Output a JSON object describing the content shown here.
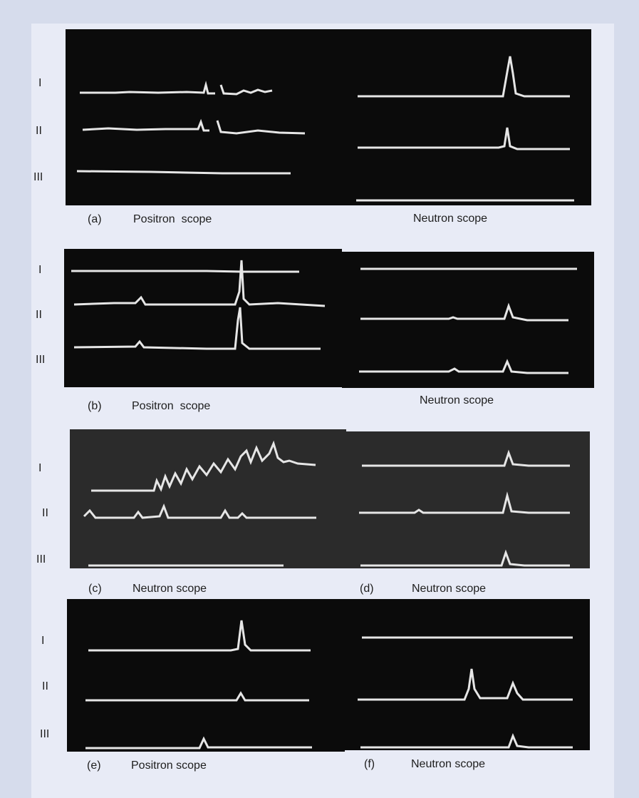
{
  "roman": [
    "I",
    "II",
    "III"
  ],
  "panels": [
    {
      "letter": "(a)",
      "left_label": "Positron  scope",
      "right_label": "Neutron scope"
    },
    {
      "letter": "(b)",
      "left_label": "Positron  scope",
      "right_label": "Neutron scope"
    },
    {
      "letter": "(c)",
      "left_label": "Neutron scope",
      "right_letter": "(d)",
      "right_label": "Neutron scope"
    },
    {
      "letter": "(e)",
      "left_label": "Positron scope",
      "right_letter": "(f)",
      "right_label": "Neutron scope"
    }
  ],
  "colors": {
    "page": "#d6dcec",
    "frame": "#e8ebf6",
    "scope": "#0b0b0b",
    "trace": "#e6e6e6"
  }
}
